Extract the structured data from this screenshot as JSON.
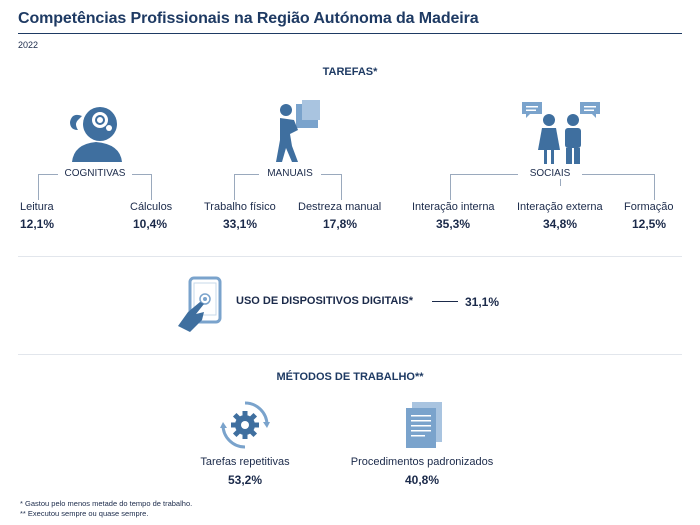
{
  "header": {
    "title": "Competências Profissionais na Região Autónoma da Madeira",
    "year": "2022"
  },
  "tasks": {
    "title": "TAREFAS*",
    "groups": [
      {
        "label": "COGNITIVAS",
        "icon": "head-thinking-icon",
        "items": [
          {
            "label": "Leitura",
            "value": "12,1%"
          },
          {
            "label": "Cálculos",
            "value": "10,4%"
          }
        ]
      },
      {
        "label": "MANUAIS",
        "icon": "person-carrying-boxes-icon",
        "items": [
          {
            "label": "Trabalho físico",
            "value": "33,1%"
          },
          {
            "label": "Destreza manual",
            "value": "17,8%"
          }
        ]
      },
      {
        "label": "SOCIAIS",
        "icon": "people-talking-icon",
        "items": [
          {
            "label": "Interação interna",
            "value": "35,3%"
          },
          {
            "label": "Interação externa",
            "value": "34,8%"
          },
          {
            "label": "Formação",
            "value": "12,5%"
          }
        ]
      }
    ]
  },
  "digital": {
    "label": "USO DE DISPOSITIVOS DIGITAIS*",
    "value": "31,1%",
    "icon": "tablet-touch-icon"
  },
  "methods": {
    "title": "MÉTODOS DE TRABALHO**",
    "items": [
      {
        "label": "Tarefas repetitivas",
        "value": "53,2%",
        "icon": "gear-cycle-icon"
      },
      {
        "label": "Procedimentos padronizados",
        "value": "40,8%",
        "icon": "documents-icon"
      }
    ]
  },
  "footnotes": [
    "* Gastou pelo menos metade do tempo de trabalho.",
    "** Executou sempre ou quase sempre."
  ],
  "colors": {
    "accent": "#1e3a63",
    "icon": "#7aa3cc",
    "icon_dark": "#3f6f9f"
  }
}
